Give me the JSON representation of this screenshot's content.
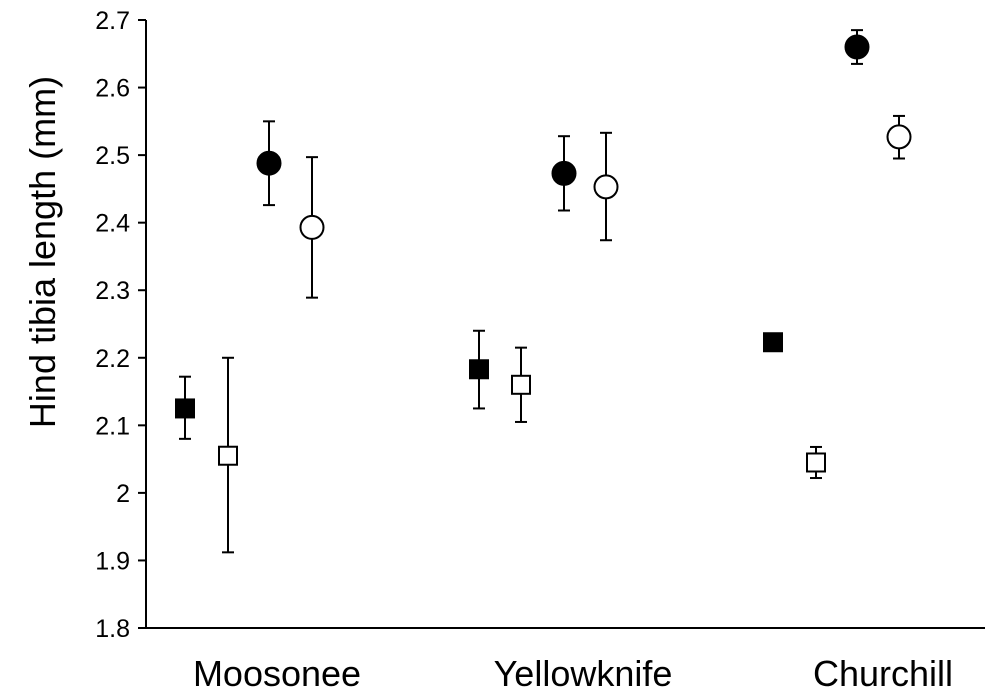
{
  "chart_data": {
    "type": "scatter",
    "title": "",
    "xlabel": "",
    "ylabel": "Hind tibia length (mm)",
    "ylim": [
      1.8,
      2.7
    ],
    "yticks": [
      "1.8",
      "1.9",
      "2",
      "2.1",
      "2.2",
      "2.3",
      "2.4",
      "2.5",
      "2.6",
      "2.7"
    ],
    "categories": [
      "Moosonee",
      "Yellowknife",
      "Churchill"
    ],
    "grid": false,
    "legend": "none",
    "series": [
      {
        "marker": "square",
        "fill": "#000000",
        "values": [
          2.125,
          2.183,
          2.223
        ],
        "err_low": [
          2.08,
          2.125,
          2.218
        ],
        "err_high": [
          2.172,
          2.24,
          2.228
        ]
      },
      {
        "marker": "square",
        "fill": "#ffffff",
        "values": [
          2.055,
          2.16,
          2.045
        ],
        "err_low": [
          1.912,
          2.105,
          2.022
        ],
        "err_high": [
          2.2,
          2.215,
          2.068
        ]
      },
      {
        "marker": "circle",
        "fill": "#000000",
        "values": [
          2.488,
          2.473,
          2.66
        ],
        "err_low": [
          2.426,
          2.418,
          2.635
        ],
        "err_high": [
          2.55,
          2.528,
          2.685
        ]
      },
      {
        "marker": "circle",
        "fill": "#ffffff",
        "values": [
          2.393,
          2.453,
          2.527
        ],
        "err_low": [
          2.289,
          2.374,
          2.495
        ],
        "err_high": [
          2.497,
          2.533,
          2.558
        ]
      }
    ]
  }
}
